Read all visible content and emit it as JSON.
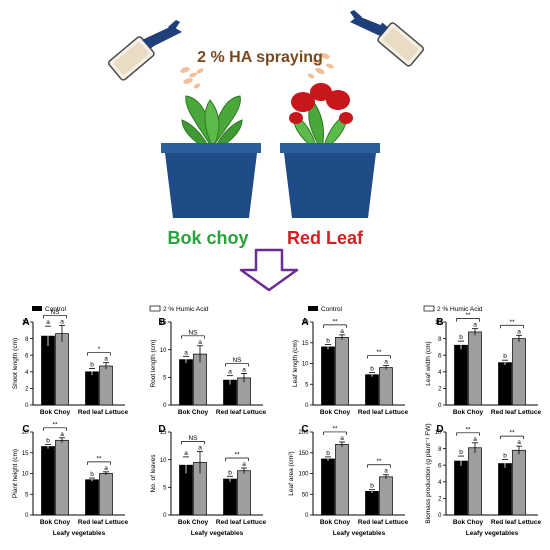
{
  "header": {
    "spray_label": "2 % HA spraying",
    "plant_left_label": "Bok choy",
    "plant_right_label": "Red Leaf"
  },
  "colors": {
    "spray_label": "#7a4a1f",
    "bok_choy_label": "#27a33a",
    "red_leaf_label": "#d42020",
    "arrow": "#6a2d91",
    "pot": "#1f4c87",
    "pot_rim": "#2a5f9e",
    "leaf_green": "#4aa83b",
    "leaf_red": "#c8161d",
    "control_bar": "#000000",
    "humic_bar": "#9e9e9e"
  },
  "legends": [
    {
      "control": "Control"
    },
    {
      "humic": "2 % Humic Acid"
    },
    {
      "control": "Control"
    },
    {
      "humic": "2 % Humic Acid"
    }
  ],
  "shared_xlabel": "Leafy vegetables",
  "chart_data": [
    {
      "type": "bar",
      "panel_letter": "A",
      "ylabel": "Shoot length (cm)",
      "ylim": [
        0,
        10
      ],
      "yticks": [
        0,
        2,
        4,
        6,
        8,
        10
      ],
      "categories": [
        "Bok Choy",
        "Red leaf Lettuce"
      ],
      "series": [
        {
          "name": "Control",
          "values": [
            8.3,
            4.0
          ],
          "errors": [
            1.2,
            0.4
          ],
          "letters": [
            "a",
            "b"
          ]
        },
        {
          "name": "2 % Humic Acid",
          "values": [
            8.6,
            4.7
          ],
          "errors": [
            1.0,
            0.4
          ],
          "letters": [
            "a",
            "a"
          ]
        }
      ],
      "significance": [
        "NS",
        "*"
      ]
    },
    {
      "type": "bar",
      "panel_letter": "B",
      "ylabel": "Root length (cm)",
      "ylim": [
        0,
        15
      ],
      "yticks": [
        0,
        5,
        10,
        15
      ],
      "categories": [
        "Bok Choy",
        "Red leaf Lettuce"
      ],
      "series": [
        {
          "name": "Control",
          "values": [
            8.2,
            4.5
          ],
          "errors": [
            0.6,
            0.8
          ],
          "letters": [
            "a",
            "a"
          ]
        },
        {
          "name": "2 % Humic Acid",
          "values": [
            9.2,
            4.9
          ],
          "errors": [
            1.5,
            0.8
          ],
          "letters": [
            "a",
            "a"
          ]
        }
      ],
      "significance": [
        "NS",
        "NS"
      ]
    },
    {
      "type": "bar",
      "panel_letter": "A",
      "ylabel": "Leaf length (cm)",
      "ylim": [
        0,
        20
      ],
      "yticks": [
        0,
        5,
        10,
        15,
        20
      ],
      "categories": [
        "Bok Choy",
        "Red leaf Lettuce"
      ],
      "series": [
        {
          "name": "Control",
          "values": [
            14.0,
            7.3
          ],
          "errors": [
            0.6,
            0.5
          ],
          "letters": [
            "b",
            "b"
          ]
        },
        {
          "name": "2 % Humic Acid",
          "values": [
            16.3,
            9.0
          ],
          "errors": [
            0.6,
            0.5
          ],
          "letters": [
            "a",
            "a"
          ]
        }
      ],
      "significance": [
        "**",
        "**"
      ]
    },
    {
      "type": "bar",
      "panel_letter": "B",
      "ylabel": "Leaf width (cm)",
      "ylim": [
        0,
        10
      ],
      "yticks": [
        0,
        2,
        4,
        6,
        8,
        10
      ],
      "categories": [
        "Bok Choy",
        "Red leaf Lettuce"
      ],
      "series": [
        {
          "name": "Control",
          "values": [
            7.2,
            5.1
          ],
          "errors": [
            0.5,
            0.3
          ],
          "letters": [
            "b",
            "b"
          ]
        },
        {
          "name": "2 % Humic Acid",
          "values": [
            8.8,
            8.0
          ],
          "errors": [
            0.4,
            0.4
          ],
          "letters": [
            "a",
            "a"
          ]
        }
      ],
      "significance": [
        "**",
        "**"
      ]
    },
    {
      "type": "bar",
      "panel_letter": "C",
      "ylabel": "Plant height (cm)",
      "ylim": [
        0,
        20
      ],
      "yticks": [
        0,
        5,
        10,
        15,
        20
      ],
      "categories": [
        "Bok Choy",
        "Red leaf Lettuce"
      ],
      "series": [
        {
          "name": "Control",
          "values": [
            16.5,
            8.5
          ],
          "errors": [
            0.5,
            0.4
          ],
          "letters": [
            "b",
            "b"
          ]
        },
        {
          "name": "2 % Humic Acid",
          "values": [
            18.0,
            10.0
          ],
          "errors": [
            0.6,
            0.4
          ],
          "letters": [
            "a",
            "a"
          ]
        }
      ],
      "significance": [
        "**",
        "**"
      ]
    },
    {
      "type": "bar",
      "panel_letter": "D",
      "ylabel": "No. of leaves",
      "ylim": [
        0,
        15
      ],
      "yticks": [
        0,
        5,
        10,
        15
      ],
      "categories": [
        "Bok Choy",
        "Red leaf Lettuce"
      ],
      "series": [
        {
          "name": "Control",
          "values": [
            9.0,
            6.5
          ],
          "errors": [
            1.5,
            0.5
          ],
          "letters": [
            "a",
            "b"
          ]
        },
        {
          "name": "2 % Humic Acid",
          "values": [
            9.5,
            8.0
          ],
          "errors": [
            2.0,
            0.5
          ],
          "letters": [
            "a",
            "a"
          ]
        }
      ],
      "significance": [
        "NS",
        "**"
      ]
    },
    {
      "type": "bar",
      "panel_letter": "C",
      "ylabel": "Leaf area (cm²)",
      "ylim": [
        0,
        200
      ],
      "yticks": [
        0,
        50,
        100,
        150,
        200
      ],
      "categories": [
        "Bok Choy",
        "Red leaf Lettuce"
      ],
      "series": [
        {
          "name": "Control",
          "values": [
            135,
            57
          ],
          "errors": [
            5,
            4
          ],
          "letters": [
            "b",
            "b"
          ]
        },
        {
          "name": "2 % Humic Acid",
          "values": [
            170,
            92
          ],
          "errors": [
            6,
            5
          ],
          "letters": [
            "a",
            "a"
          ]
        }
      ],
      "significance": [
        "**",
        "**"
      ]
    },
    {
      "type": "bar",
      "panel_letter": "D",
      "ylabel": "Biomass production (g plant⁻¹ FW)",
      "ylim": [
        0,
        10
      ],
      "yticks": [
        0,
        2,
        4,
        6,
        8,
        10
      ],
      "categories": [
        "Bok Choy",
        "Red leaf Lettuce"
      ],
      "series": [
        {
          "name": "Control",
          "values": [
            6.5,
            6.2
          ],
          "errors": [
            0.6,
            0.5
          ],
          "letters": [
            "b",
            "b"
          ]
        },
        {
          "name": "2 % Humic Acid",
          "values": [
            8.1,
            7.8
          ],
          "errors": [
            0.6,
            0.5
          ],
          "letters": [
            "a",
            "a"
          ]
        }
      ],
      "significance": [
        "**",
        "**"
      ]
    }
  ]
}
